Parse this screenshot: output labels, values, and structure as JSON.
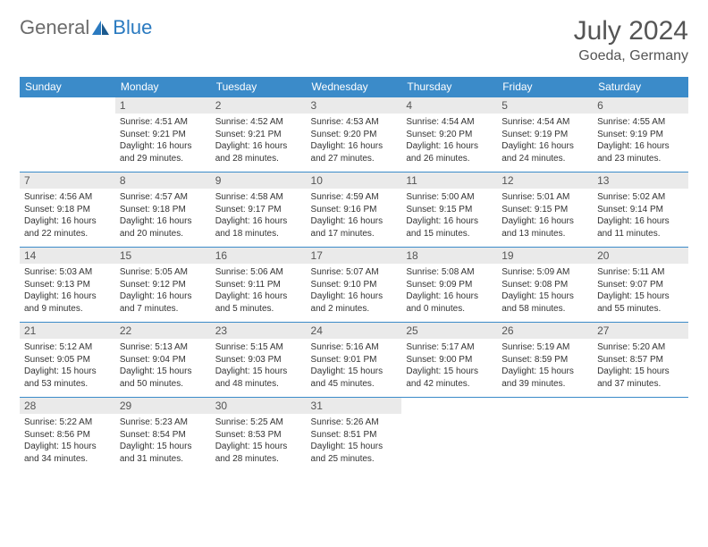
{
  "header": {
    "logo_general": "General",
    "logo_blue": "Blue",
    "month": "July 2024",
    "location": "Goeda, Germany"
  },
  "colors": {
    "header_bg": "#3b8bc9",
    "daynum_bg": "#eaeaea",
    "logo_gray": "#6b6b6b",
    "logo_blue": "#2a7ac0"
  },
  "dayNames": [
    "Sunday",
    "Monday",
    "Tuesday",
    "Wednesday",
    "Thursday",
    "Friday",
    "Saturday"
  ],
  "weeks": [
    [
      null,
      {
        "n": "1",
        "sr": "Sunrise: 4:51 AM",
        "ss": "Sunset: 9:21 PM",
        "dl1": "Daylight: 16 hours",
        "dl2": "and 29 minutes."
      },
      {
        "n": "2",
        "sr": "Sunrise: 4:52 AM",
        "ss": "Sunset: 9:21 PM",
        "dl1": "Daylight: 16 hours",
        "dl2": "and 28 minutes."
      },
      {
        "n": "3",
        "sr": "Sunrise: 4:53 AM",
        "ss": "Sunset: 9:20 PM",
        "dl1": "Daylight: 16 hours",
        "dl2": "and 27 minutes."
      },
      {
        "n": "4",
        "sr": "Sunrise: 4:54 AM",
        "ss": "Sunset: 9:20 PM",
        "dl1": "Daylight: 16 hours",
        "dl2": "and 26 minutes."
      },
      {
        "n": "5",
        "sr": "Sunrise: 4:54 AM",
        "ss": "Sunset: 9:19 PM",
        "dl1": "Daylight: 16 hours",
        "dl2": "and 24 minutes."
      },
      {
        "n": "6",
        "sr": "Sunrise: 4:55 AM",
        "ss": "Sunset: 9:19 PM",
        "dl1": "Daylight: 16 hours",
        "dl2": "and 23 minutes."
      }
    ],
    [
      {
        "n": "7",
        "sr": "Sunrise: 4:56 AM",
        "ss": "Sunset: 9:18 PM",
        "dl1": "Daylight: 16 hours",
        "dl2": "and 22 minutes."
      },
      {
        "n": "8",
        "sr": "Sunrise: 4:57 AM",
        "ss": "Sunset: 9:18 PM",
        "dl1": "Daylight: 16 hours",
        "dl2": "and 20 minutes."
      },
      {
        "n": "9",
        "sr": "Sunrise: 4:58 AM",
        "ss": "Sunset: 9:17 PM",
        "dl1": "Daylight: 16 hours",
        "dl2": "and 18 minutes."
      },
      {
        "n": "10",
        "sr": "Sunrise: 4:59 AM",
        "ss": "Sunset: 9:16 PM",
        "dl1": "Daylight: 16 hours",
        "dl2": "and 17 minutes."
      },
      {
        "n": "11",
        "sr": "Sunrise: 5:00 AM",
        "ss": "Sunset: 9:15 PM",
        "dl1": "Daylight: 16 hours",
        "dl2": "and 15 minutes."
      },
      {
        "n": "12",
        "sr": "Sunrise: 5:01 AM",
        "ss": "Sunset: 9:15 PM",
        "dl1": "Daylight: 16 hours",
        "dl2": "and 13 minutes."
      },
      {
        "n": "13",
        "sr": "Sunrise: 5:02 AM",
        "ss": "Sunset: 9:14 PM",
        "dl1": "Daylight: 16 hours",
        "dl2": "and 11 minutes."
      }
    ],
    [
      {
        "n": "14",
        "sr": "Sunrise: 5:03 AM",
        "ss": "Sunset: 9:13 PM",
        "dl1": "Daylight: 16 hours",
        "dl2": "and 9 minutes."
      },
      {
        "n": "15",
        "sr": "Sunrise: 5:05 AM",
        "ss": "Sunset: 9:12 PM",
        "dl1": "Daylight: 16 hours",
        "dl2": "and 7 minutes."
      },
      {
        "n": "16",
        "sr": "Sunrise: 5:06 AM",
        "ss": "Sunset: 9:11 PM",
        "dl1": "Daylight: 16 hours",
        "dl2": "and 5 minutes."
      },
      {
        "n": "17",
        "sr": "Sunrise: 5:07 AM",
        "ss": "Sunset: 9:10 PM",
        "dl1": "Daylight: 16 hours",
        "dl2": "and 2 minutes."
      },
      {
        "n": "18",
        "sr": "Sunrise: 5:08 AM",
        "ss": "Sunset: 9:09 PM",
        "dl1": "Daylight: 16 hours",
        "dl2": "and 0 minutes."
      },
      {
        "n": "19",
        "sr": "Sunrise: 5:09 AM",
        "ss": "Sunset: 9:08 PM",
        "dl1": "Daylight: 15 hours",
        "dl2": "and 58 minutes."
      },
      {
        "n": "20",
        "sr": "Sunrise: 5:11 AM",
        "ss": "Sunset: 9:07 PM",
        "dl1": "Daylight: 15 hours",
        "dl2": "and 55 minutes."
      }
    ],
    [
      {
        "n": "21",
        "sr": "Sunrise: 5:12 AM",
        "ss": "Sunset: 9:05 PM",
        "dl1": "Daylight: 15 hours",
        "dl2": "and 53 minutes."
      },
      {
        "n": "22",
        "sr": "Sunrise: 5:13 AM",
        "ss": "Sunset: 9:04 PM",
        "dl1": "Daylight: 15 hours",
        "dl2": "and 50 minutes."
      },
      {
        "n": "23",
        "sr": "Sunrise: 5:15 AM",
        "ss": "Sunset: 9:03 PM",
        "dl1": "Daylight: 15 hours",
        "dl2": "and 48 minutes."
      },
      {
        "n": "24",
        "sr": "Sunrise: 5:16 AM",
        "ss": "Sunset: 9:01 PM",
        "dl1": "Daylight: 15 hours",
        "dl2": "and 45 minutes."
      },
      {
        "n": "25",
        "sr": "Sunrise: 5:17 AM",
        "ss": "Sunset: 9:00 PM",
        "dl1": "Daylight: 15 hours",
        "dl2": "and 42 minutes."
      },
      {
        "n": "26",
        "sr": "Sunrise: 5:19 AM",
        "ss": "Sunset: 8:59 PM",
        "dl1": "Daylight: 15 hours",
        "dl2": "and 39 minutes."
      },
      {
        "n": "27",
        "sr": "Sunrise: 5:20 AM",
        "ss": "Sunset: 8:57 PM",
        "dl1": "Daylight: 15 hours",
        "dl2": "and 37 minutes."
      }
    ],
    [
      {
        "n": "28",
        "sr": "Sunrise: 5:22 AM",
        "ss": "Sunset: 8:56 PM",
        "dl1": "Daylight: 15 hours",
        "dl2": "and 34 minutes."
      },
      {
        "n": "29",
        "sr": "Sunrise: 5:23 AM",
        "ss": "Sunset: 8:54 PM",
        "dl1": "Daylight: 15 hours",
        "dl2": "and 31 minutes."
      },
      {
        "n": "30",
        "sr": "Sunrise: 5:25 AM",
        "ss": "Sunset: 8:53 PM",
        "dl1": "Daylight: 15 hours",
        "dl2": "and 28 minutes."
      },
      {
        "n": "31",
        "sr": "Sunrise: 5:26 AM",
        "ss": "Sunset: 8:51 PM",
        "dl1": "Daylight: 15 hours",
        "dl2": "and 25 minutes."
      },
      null,
      null,
      null
    ]
  ]
}
